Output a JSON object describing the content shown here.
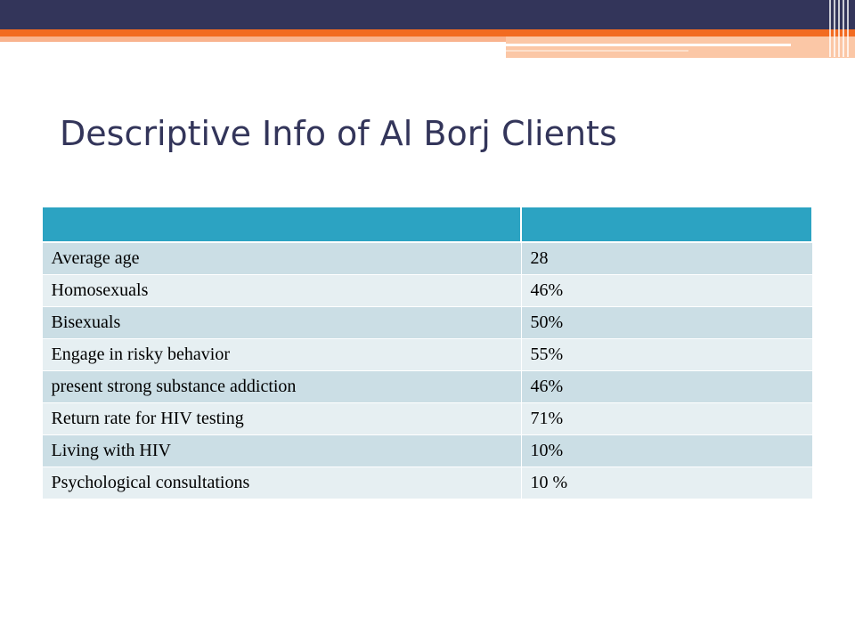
{
  "title": "Descriptive Info of Al Borj Clients",
  "colors": {
    "navy": "#33355a",
    "orange": "#f26b21",
    "table_header": "#2ca3c2",
    "row_odd": "#cbdee5",
    "row_even": "#e6eff2"
  },
  "table": {
    "headers": [
      "",
      ""
    ],
    "rows": [
      {
        "label": "Average age",
        "value": "28"
      },
      {
        "label": "Homosexuals",
        "value": "46%"
      },
      {
        "label": "Bisexuals",
        "value": "50%"
      },
      {
        "label": "Engage in risky behavior",
        "value": "55%"
      },
      {
        "label": "present strong substance addiction",
        "value": "46%"
      },
      {
        "label": "Return rate for HIV testing",
        "value": "71%"
      },
      {
        "label": "Living with HIV",
        "value": "10%"
      },
      {
        "label": "Psychological consultations",
        "value": "10 %"
      }
    ]
  }
}
